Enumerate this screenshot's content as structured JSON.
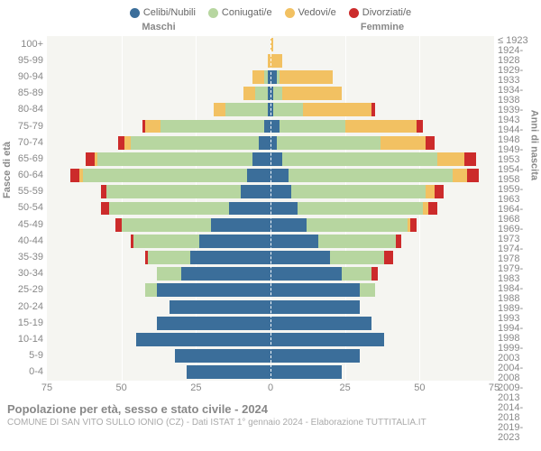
{
  "legend": [
    {
      "label": "Celibi/Nubili",
      "color": "#3b6e9a"
    },
    {
      "label": "Coniugati/e",
      "color": "#b7d6a0"
    },
    {
      "label": "Vedovi/e",
      "color": "#f2c162"
    },
    {
      "label": "Divorziati/e",
      "color": "#cc2b2b"
    }
  ],
  "header": {
    "male": "Maschi",
    "female": "Femmine"
  },
  "y_left_title": "Fasce di età",
  "y_right_title": "Anni di nascita",
  "x_max": 75,
  "x_ticks": [
    75,
    50,
    25,
    0,
    25,
    50,
    75
  ],
  "age_labels": [
    "100+",
    "95-99",
    "90-94",
    "85-89",
    "80-84",
    "75-79",
    "70-74",
    "65-69",
    "60-64",
    "55-59",
    "50-54",
    "45-49",
    "40-44",
    "35-39",
    "30-34",
    "25-29",
    "20-24",
    "15-19",
    "10-14",
    "5-9",
    "0-4"
  ],
  "birth_labels": [
    "≤ 1923",
    "1924-1928",
    "1929-1933",
    "1934-1938",
    "1939-1943",
    "1944-1948",
    "1949-1953",
    "1954-1958",
    "1959-1963",
    "1964-1968",
    "1969-1973",
    "1974-1978",
    "1979-1983",
    "1984-1988",
    "1989-1993",
    "1994-1998",
    "1999-2003",
    "2004-2008",
    "2009-2013",
    "2014-2018",
    "2019-2023"
  ],
  "rows": [
    {
      "m": [
        0,
        0,
        0,
        0
      ],
      "f": [
        0,
        0,
        1,
        0
      ]
    },
    {
      "m": [
        0,
        0,
        1,
        0
      ],
      "f": [
        0,
        0,
        4,
        0
      ]
    },
    {
      "m": [
        1,
        1,
        4,
        0
      ],
      "f": [
        2,
        1,
        18,
        0
      ]
    },
    {
      "m": [
        1,
        4,
        4,
        0
      ],
      "f": [
        1,
        3,
        20,
        0
      ]
    },
    {
      "m": [
        1,
        14,
        4,
        0
      ],
      "f": [
        1,
        10,
        23,
        1
      ]
    },
    {
      "m": [
        2,
        35,
        5,
        1
      ],
      "f": [
        3,
        22,
        24,
        2
      ]
    },
    {
      "m": [
        4,
        43,
        2,
        2
      ],
      "f": [
        2,
        35,
        15,
        3
      ]
    },
    {
      "m": [
        6,
        52,
        1,
        3
      ],
      "f": [
        4,
        52,
        9,
        4
      ]
    },
    {
      "m": [
        8,
        55,
        1,
        3
      ],
      "f": [
        6,
        55,
        5,
        4
      ]
    },
    {
      "m": [
        10,
        45,
        0,
        2
      ],
      "f": [
        7,
        45,
        3,
        3
      ]
    },
    {
      "m": [
        14,
        40,
        0,
        3
      ],
      "f": [
        9,
        42,
        2,
        3
      ]
    },
    {
      "m": [
        20,
        30,
        0,
        2
      ],
      "f": [
        12,
        34,
        1,
        2
      ]
    },
    {
      "m": [
        24,
        22,
        0,
        1
      ],
      "f": [
        16,
        26,
        0,
        2
      ]
    },
    {
      "m": [
        27,
        14,
        0,
        1
      ],
      "f": [
        20,
        18,
        0,
        3
      ]
    },
    {
      "m": [
        30,
        8,
        0,
        0
      ],
      "f": [
        24,
        10,
        0,
        2
      ]
    },
    {
      "m": [
        38,
        4,
        0,
        0
      ],
      "f": [
        30,
        5,
        0,
        0
      ]
    },
    {
      "m": [
        34,
        0,
        0,
        0
      ],
      "f": [
        30,
        0,
        0,
        0
      ]
    },
    {
      "m": [
        38,
        0,
        0,
        0
      ],
      "f": [
        34,
        0,
        0,
        0
      ]
    },
    {
      "m": [
        45,
        0,
        0,
        0
      ],
      "f": [
        38,
        0,
        0,
        0
      ]
    },
    {
      "m": [
        32,
        0,
        0,
        0
      ],
      "f": [
        30,
        0,
        0,
        0
      ]
    },
    {
      "m": [
        28,
        0,
        0,
        0
      ],
      "f": [
        24,
        0,
        0,
        0
      ]
    }
  ],
  "colors": {
    "celibi": "#3b6e9a",
    "coniugati": "#b7d6a0",
    "vedovi": "#f2c162",
    "divorziati": "#cc2b2b",
    "plot_bg": "#f5f5f1",
    "grid": "#ffffff"
  },
  "footer": {
    "title": "Popolazione per età, sesso e stato civile - 2024",
    "subtitle": "COMUNE DI SAN VITO SULLO IONIO (CZ) - Dati ISTAT 1° gennaio 2024 - Elaborazione TUTTITALIA.IT"
  }
}
